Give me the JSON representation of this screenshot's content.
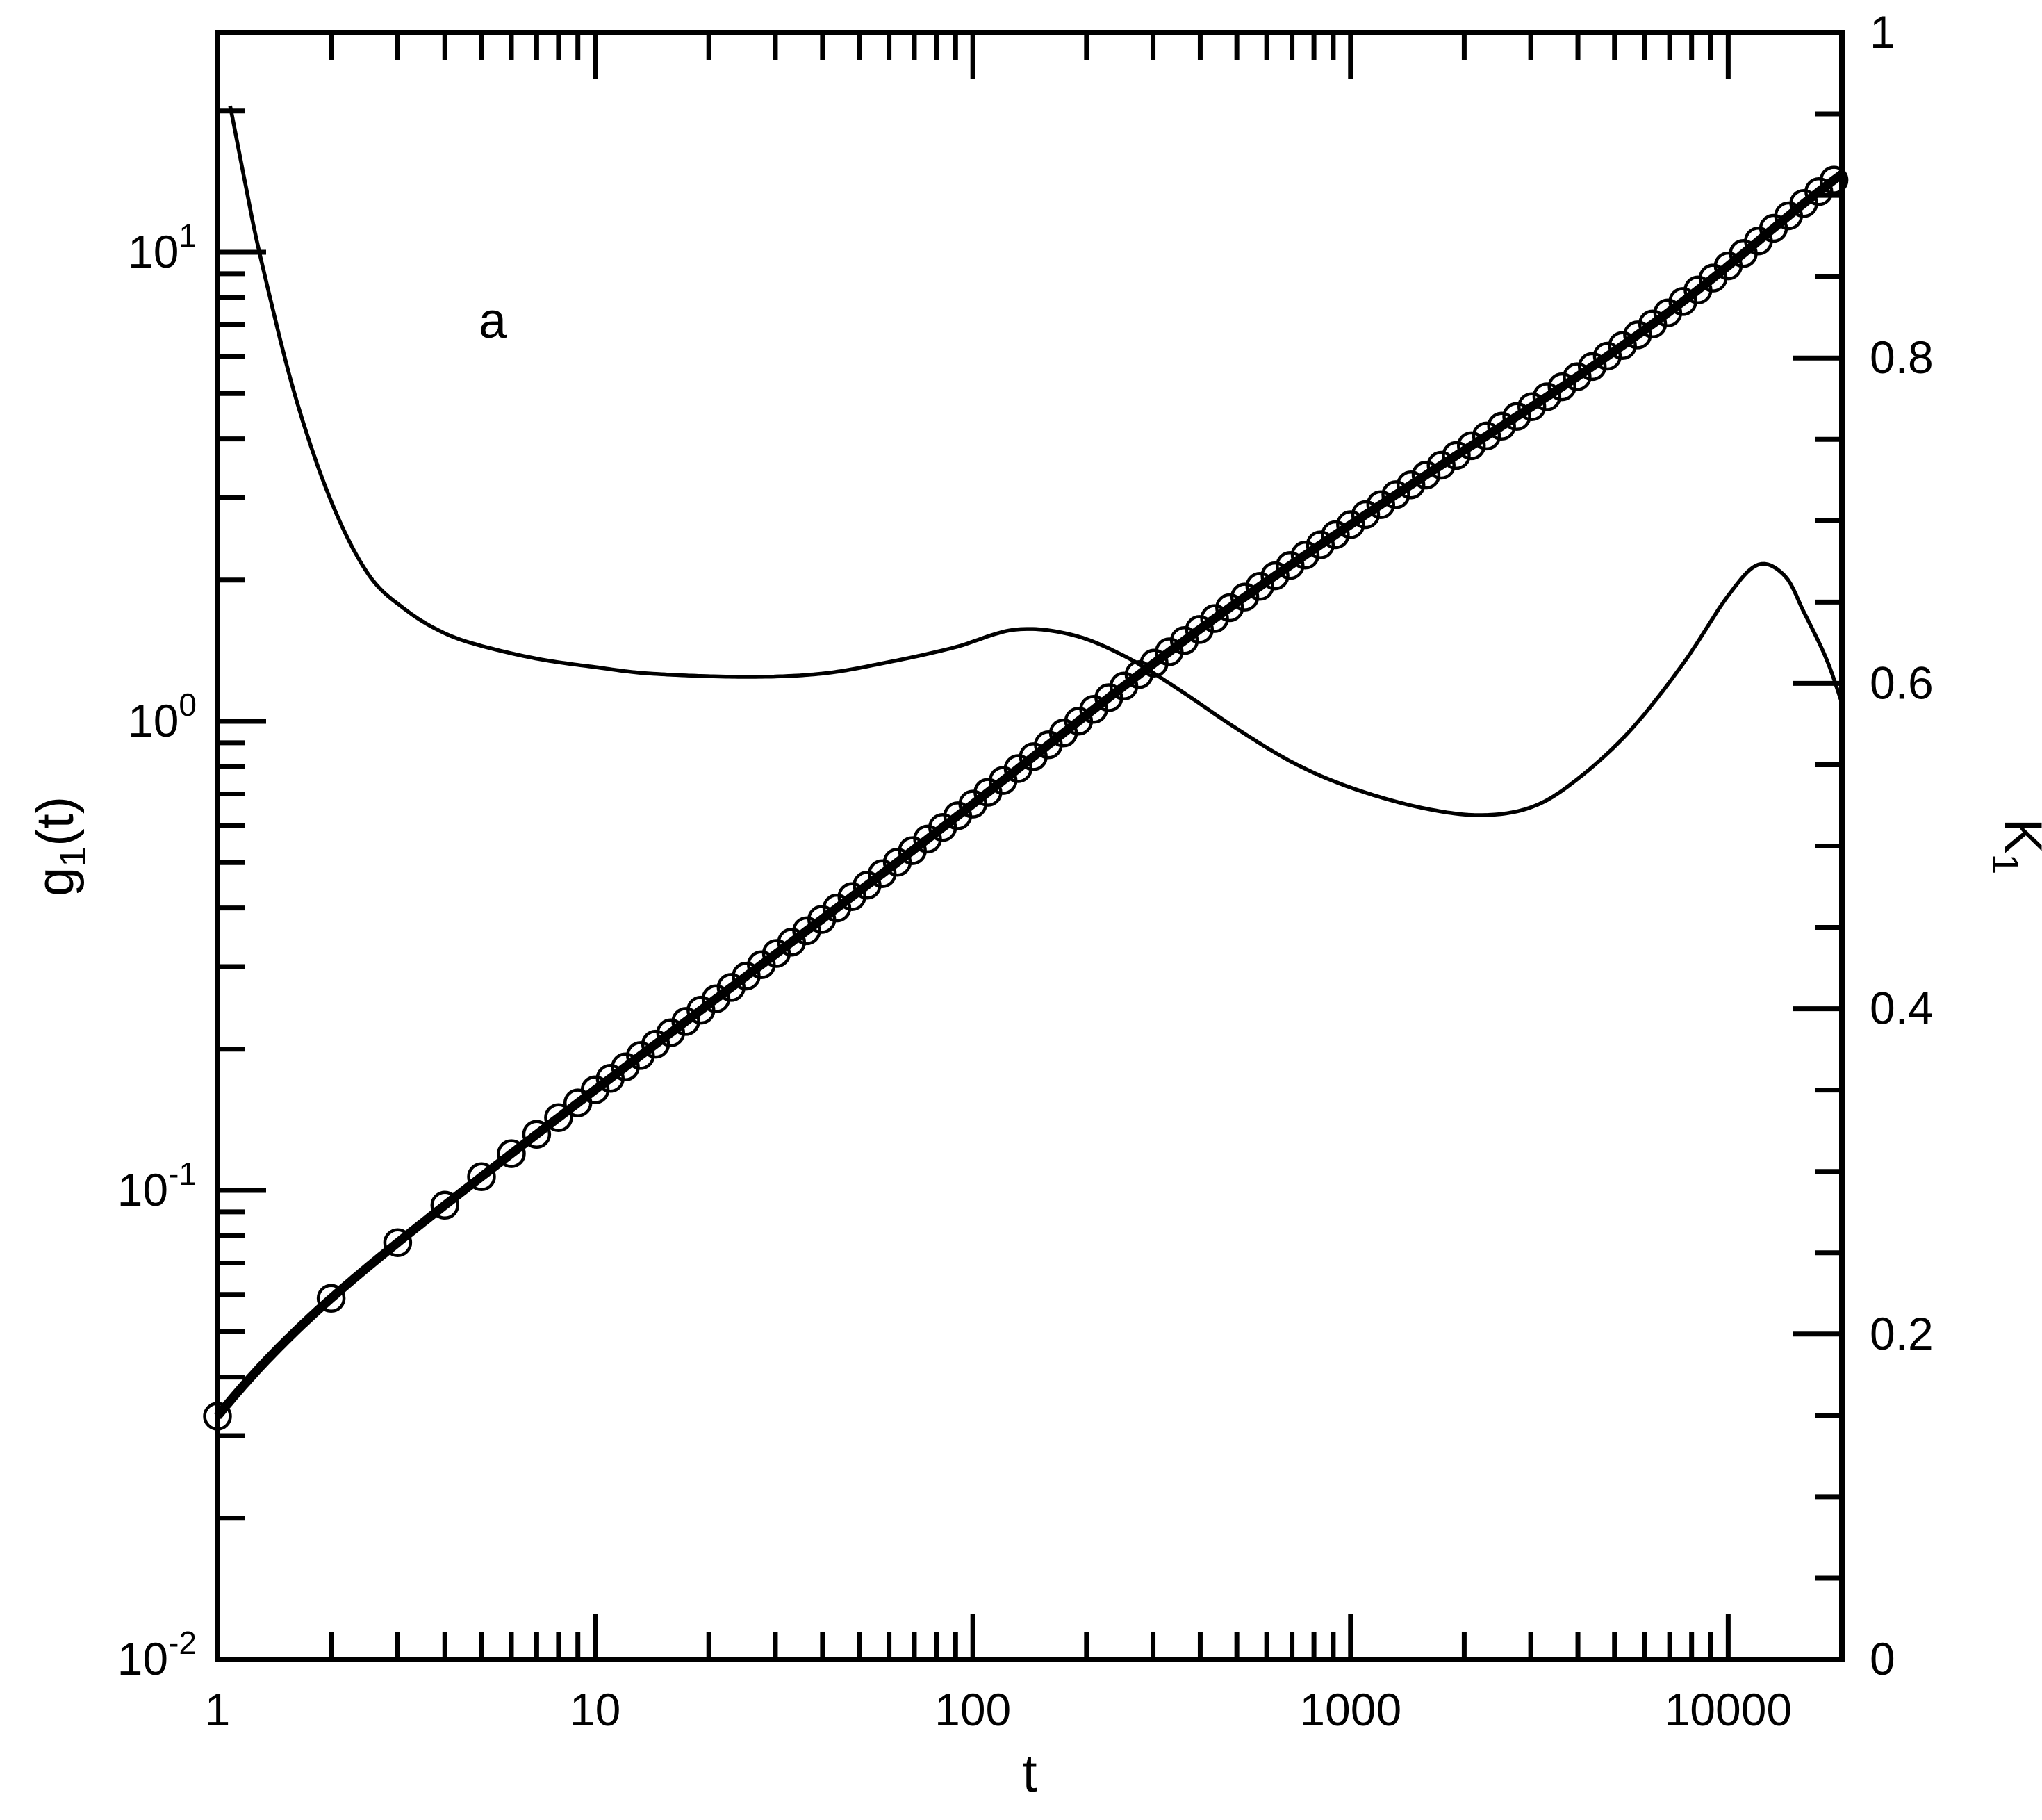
{
  "figure": {
    "panel_label": "a"
  },
  "colors": {
    "ink": "#000000",
    "background": "#ffffff"
  },
  "chart_data": {
    "type": "line",
    "title": "",
    "xlabel": "t",
    "grid": false,
    "legend": null,
    "x_axis": {
      "scale": "log",
      "min": 1,
      "max": 20000,
      "major_tick_values": [
        1,
        10,
        100,
        1000,
        10000
      ],
      "major_tick_labels": [
        "1",
        "10",
        "100",
        "1000",
        "10000"
      ],
      "minor_ticks": "2-9 per decade, mirrored on top axis"
    },
    "left_axis": {
      "scale": "log",
      "min": 0.01,
      "max_at_frame_top": 28.3,
      "label_parts": {
        "main": "g",
        "sub": "1",
        "suffix": "(t)"
      },
      "major_tick_values": [
        0.01,
        0.1,
        1,
        10
      ],
      "major_tick_labels": [
        {
          "base": "10",
          "exp": "-2"
        },
        {
          "base": "10",
          "exp": "-1"
        },
        {
          "base": "10",
          "exp": "0"
        },
        {
          "base": "10",
          "exp": "1"
        }
      ],
      "minor_ticks": "2-9 per decade plus 20"
    },
    "right_axis": {
      "scale": "linear",
      "min": 0,
      "max": 1,
      "label_parts": {
        "main": "K",
        "sub": "1"
      },
      "major_tick_values": [
        0,
        0.2,
        0.4,
        0.6,
        0.8,
        1
      ],
      "major_tick_labels": [
        "0",
        "0.2",
        "0.4",
        "0.6",
        "0.8",
        "1"
      ],
      "minor_tick_step": 0.05
    },
    "series": [
      {
        "id": "k1",
        "name": "K1 effective exponent (thin line, right axis)",
        "type": "line",
        "axis": "right",
        "points_t_K": [
          [
            1.0,
            0.99
          ],
          [
            1.08,
            0.955
          ],
          [
            1.19,
            0.905
          ],
          [
            1.3,
            0.862
          ],
          [
            1.6,
            0.778
          ],
          [
            2.0,
            0.712
          ],
          [
            2.51,
            0.667
          ],
          [
            3.16,
            0.645
          ],
          [
            3.98,
            0.631
          ],
          [
            5.01,
            0.623
          ],
          [
            7.08,
            0.615
          ],
          [
            10,
            0.61
          ],
          [
            14.1,
            0.606
          ],
          [
            25.1,
            0.604
          ],
          [
            39.8,
            0.606
          ],
          [
            59.6,
            0.613
          ],
          [
            89.1,
            0.622
          ],
          [
            129,
            0.633
          ],
          [
            182,
            0.63
          ],
          [
            251,
            0.617
          ],
          [
            347,
            0.597
          ],
          [
            501,
            0.572
          ],
          [
            708,
            0.551
          ],
          [
            1000,
            0.536
          ],
          [
            1510,
            0.524
          ],
          [
            2190,
            0.519
          ],
          [
            3020,
            0.524
          ],
          [
            3980,
            0.541
          ],
          [
            5500,
            0.571
          ],
          [
            7590,
            0.612
          ],
          [
            10000,
            0.654
          ],
          [
            12020,
            0.673
          ],
          [
            14130,
            0.666
          ],
          [
            15850,
            0.644
          ],
          [
            18200,
            0.615
          ],
          [
            20000,
            0.588
          ]
        ]
      },
      {
        "id": "g1-line",
        "name": "g1(t) theory (thick line, left axis)",
        "type": "line",
        "axis": "left",
        "g1_at_t1": 0.033,
        "construction": "log10 g1(t) = log10 g1(1) + integral of K1 d(log10 t)"
      },
      {
        "id": "g1-markers",
        "name": "g1(t) simulation data (open circles)",
        "type": "scatter",
        "axis": "left",
        "marker": "open-circle",
        "times_integer": [
          1,
          2,
          3,
          4,
          5,
          6,
          7,
          8,
          9
        ],
        "times_log_start": 10,
        "times_log_step_decades": 0.04,
        "times_max": 19100
      }
    ]
  }
}
